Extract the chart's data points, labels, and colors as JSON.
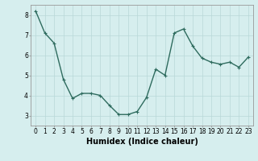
{
  "x": [
    0,
    1,
    2,
    3,
    4,
    5,
    6,
    7,
    8,
    9,
    10,
    11,
    12,
    13,
    14,
    15,
    16,
    17,
    18,
    19,
    20,
    21,
    22,
    23
  ],
  "y": [
    8.2,
    7.1,
    6.6,
    4.8,
    3.85,
    4.1,
    4.1,
    4.0,
    3.5,
    3.05,
    3.05,
    3.2,
    3.9,
    5.3,
    5.0,
    7.1,
    7.3,
    6.45,
    5.85,
    5.65,
    5.55,
    5.65,
    5.4,
    5.9
  ],
  "line_color": "#2e6b5e",
  "marker": "+",
  "marker_size": 3,
  "bg_color": "#d6eeee",
  "grid_color": "#b8d8d8",
  "xlabel": "Humidex (Indice chaleur)",
  "xlim": [
    -0.5,
    23.5
  ],
  "ylim": [
    2.5,
    8.5
  ],
  "yticks": [
    3,
    4,
    5,
    6,
    7,
    8
  ],
  "xticks": [
    0,
    1,
    2,
    3,
    4,
    5,
    6,
    7,
    8,
    9,
    10,
    11,
    12,
    13,
    14,
    15,
    16,
    17,
    18,
    19,
    20,
    21,
    22,
    23
  ],
  "tick_fontsize": 5.5,
  "xlabel_fontsize": 7,
  "line_width": 1.0,
  "marker_edge_width": 0.8
}
